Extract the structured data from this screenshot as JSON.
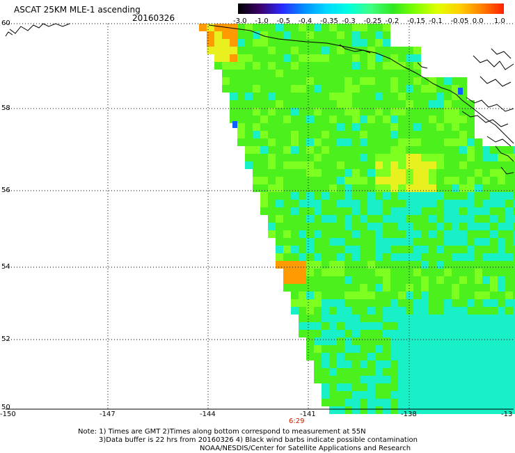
{
  "header": {
    "title": "ASCAT 25KM MLE-1 ascending",
    "date": "20160326"
  },
  "colorbar": {
    "tick_labels": [
      "-3.0",
      "-1.0",
      "-0.5",
      "-0.4",
      "-0.35",
      "-0.3",
      "-0.25",
      "-0.2",
      "-0.15",
      "-0.1",
      "-0.05",
      "0.0",
      "1.0"
    ],
    "colors": [
      "#000000",
      "#3a006a",
      "#2a2aff",
      "#0090ff",
      "#00d8ff",
      "#00ffe0",
      "#40ff80",
      "#30e820",
      "#80ff00",
      "#e0ff00",
      "#ffd000",
      "#ff8000",
      "#ff2000"
    ]
  },
  "map": {
    "lat_labels": [
      "60",
      "58",
      "56",
      "54",
      "52",
      "50"
    ],
    "lon_labels": [
      "-150",
      "-147",
      "-144",
      "-141",
      "-138",
      "-13"
    ],
    "time_label": "6:29",
    "swath_colors": {
      "green": "#4cf01c",
      "light_green": "#7dff20",
      "cyan": "#18f0c8",
      "yellow": "#e8f020",
      "orange": "#ff9a00",
      "blue": "#1060ff"
    }
  },
  "notes": {
    "line1": "Note: 1) Times are GMT 2)Times along bottom correspond to measurement at 55N",
    "line2": "3)Data buffer is 22 hrs from 20160326 4) Black wind barbs indicate possible contamination",
    "line3": "NOAA/NESDIS/Center for Satellite Applications and Research"
  }
}
